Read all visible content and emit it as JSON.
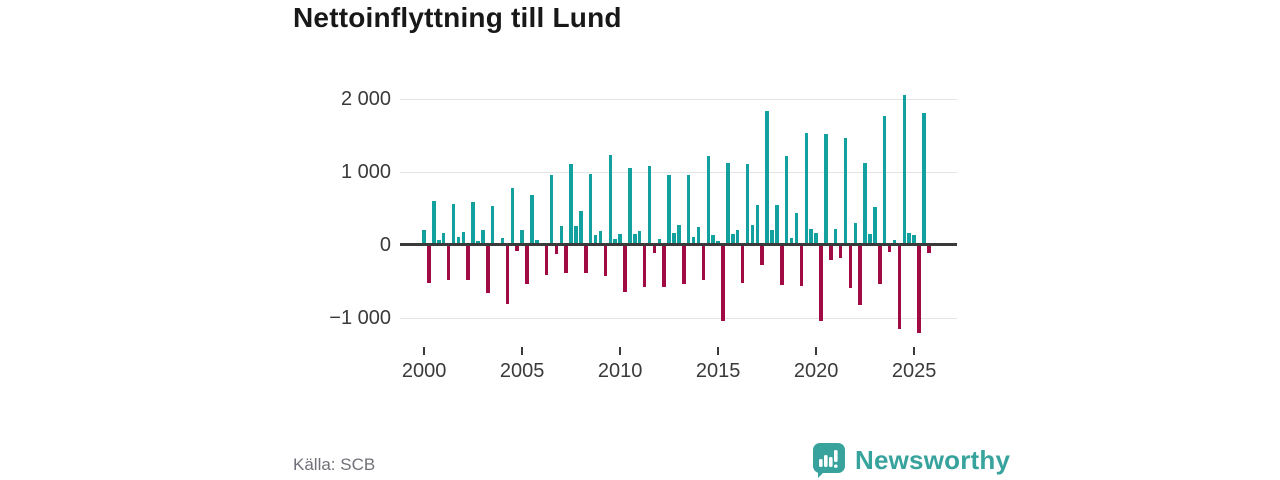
{
  "title": "Nettoinflyttning till Lund",
  "source": "Källa: SCB",
  "branding": {
    "name": "Newsworthy"
  },
  "colors": {
    "positive_bar": "#12a19e",
    "negative_bar": "#a00b44",
    "grid": "#e4e4e4",
    "axis": "#3a3a3a",
    "brand_teal": "#38a39d"
  },
  "chart_data": {
    "type": "bar",
    "title": "Nettoinflyttning till Lund",
    "xlabel": "",
    "ylabel": "",
    "frequency": "quarterly",
    "start_period": "2000 Q1",
    "end_period": "2025 Q4",
    "ylim": [
      -1400,
      2300
    ],
    "grid": true,
    "y_ticks": [
      2000,
      1000,
      0,
      -1000
    ],
    "y_tick_labels": [
      "2 000",
      "1 000",
      "0",
      "−1 000"
    ],
    "x_ticks": [
      2000,
      2005,
      2010,
      2015,
      2020,
      2025
    ],
    "x_tick_labels": [
      "2000",
      "2005",
      "2010",
      "2015",
      "2020",
      "2025"
    ],
    "years": [
      {
        "year": 2000,
        "quarters": [
          200,
          -500,
          590,
          60
        ]
      },
      {
        "year": 2001,
        "quarters": [
          160,
          -470,
          560,
          105
        ]
      },
      {
        "year": 2002,
        "quarters": [
          170,
          -465,
          585,
          55
        ]
      },
      {
        "year": 2003,
        "quarters": [
          200,
          -650,
          525,
          25
        ]
      },
      {
        "year": 2004,
        "quarters": [
          90,
          -790,
          775,
          -70
        ]
      },
      {
        "year": 2005,
        "quarters": [
          200,
          -520,
          685,
          65
        ]
      },
      {
        "year": 2006,
        "quarters": [
          25,
          -395,
          955,
          -105
        ]
      },
      {
        "year": 2007,
        "quarters": [
          250,
          -365,
          1105,
          250
        ]
      },
      {
        "year": 2008,
        "quarters": [
          455,
          -370,
          965,
          130
        ]
      },
      {
        "year": 2009,
        "quarters": [
          190,
          -410,
          1220,
          80
        ]
      },
      {
        "year": 2010,
        "quarters": [
          140,
          -630,
          1050,
          150
        ]
      },
      {
        "year": 2011,
        "quarters": [
          190,
          -560,
          1075,
          -95
        ]
      },
      {
        "year": 2012,
        "quarters": [
          75,
          -560,
          955,
          155
        ]
      },
      {
        "year": 2013,
        "quarters": [
          270,
          -520,
          950,
          110
        ]
      },
      {
        "year": 2014,
        "quarters": [
          240,
          -465,
          1215,
          125
        ]
      },
      {
        "year": 2015,
        "quarters": [
          55,
          -1020,
          1115,
          145
        ]
      },
      {
        "year": 2016,
        "quarters": [
          205,
          -510,
          1100,
          270
        ]
      },
      {
        "year": 2017,
        "quarters": [
          535,
          -260,
          1830,
          205
        ]
      },
      {
        "year": 2018,
        "quarters": [
          535,
          -535,
          1215,
          95
        ]
      },
      {
        "year": 2019,
        "quarters": [
          435,
          -550,
          1525,
          210
        ]
      },
      {
        "year": 2020,
        "quarters": [
          165,
          -1030,
          1515,
          -190
        ]
      },
      {
        "year": 2021,
        "quarters": [
          210,
          -165,
          1455,
          -580
        ]
      },
      {
        "year": 2022,
        "quarters": [
          300,
          -810,
          1115,
          145
        ]
      },
      {
        "year": 2023,
        "quarters": [
          515,
          -520,
          1760,
          -85
        ]
      },
      {
        "year": 2024,
        "quarters": [
          65,
          -1135,
          2050,
          165
        ]
      },
      {
        "year": 2025,
        "quarters": [
          125,
          -1190,
          1800,
          -100
        ]
      }
    ]
  }
}
